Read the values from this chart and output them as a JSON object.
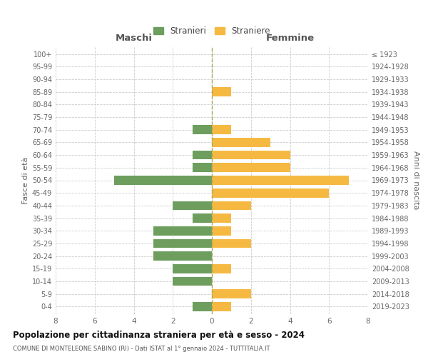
{
  "age_groups": [
    "0-4",
    "5-9",
    "10-14",
    "15-19",
    "20-24",
    "25-29",
    "30-34",
    "35-39",
    "40-44",
    "45-49",
    "50-54",
    "55-59",
    "60-64",
    "65-69",
    "70-74",
    "75-79",
    "80-84",
    "85-89",
    "90-94",
    "95-99",
    "100+"
  ],
  "birth_years": [
    "2019-2023",
    "2014-2018",
    "2009-2013",
    "2004-2008",
    "1999-2003",
    "1994-1998",
    "1989-1993",
    "1984-1988",
    "1979-1983",
    "1974-1978",
    "1969-1973",
    "1964-1968",
    "1959-1963",
    "1954-1958",
    "1949-1953",
    "1944-1948",
    "1939-1943",
    "1934-1938",
    "1929-1933",
    "1924-1928",
    "≤ 1923"
  ],
  "stranieri": [
    1,
    0,
    2,
    2,
    3,
    3,
    3,
    1,
    2,
    0,
    5,
    1,
    1,
    0,
    1,
    0,
    0,
    0,
    0,
    0,
    0
  ],
  "straniere": [
    1,
    2,
    0,
    1,
    0,
    2,
    1,
    1,
    2,
    6,
    7,
    4,
    4,
    3,
    1,
    0,
    0,
    1,
    0,
    0,
    0
  ],
  "color_stranieri": "#6d9e5e",
  "color_straniere": "#f5b942",
  "title": "Popolazione per cittadinanza straniera per età e sesso - 2024",
  "subtitle": "COMUNE DI MONTELEONE SABINO (RI) - Dati ISTAT al 1° gennaio 2024 - TUTTITALIA.IT",
  "xlabel_left": "Maschi",
  "xlabel_right": "Femmine",
  "ylabel_left": "Fasce di età",
  "ylabel_right": "Anni di nascita",
  "xlim": 8,
  "background_color": "#ffffff",
  "grid_color": "#cccccc"
}
